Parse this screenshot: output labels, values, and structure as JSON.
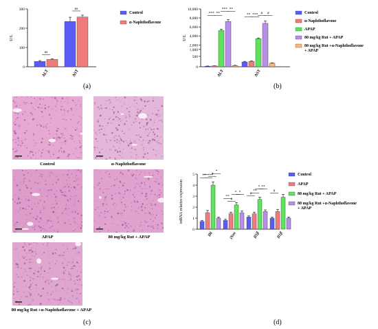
{
  "panel_labels": {
    "a": "(a)",
    "b": "(b)",
    "c": "(c)",
    "d": "(d)"
  },
  "colors": {
    "control": "#5b5bf5",
    "naphtho": "#f07b7b",
    "apap": "#5fe35f",
    "rut_apap": "#b98ee8",
    "rut_naphtho_apap": "#f5b77f"
  },
  "chart_data": [
    {
      "id": "a",
      "type": "bar",
      "ylabel": "U/L",
      "ylim": [
        0,
        300
      ],
      "yticks": [
        "0",
        "100",
        "200",
        "300"
      ],
      "categories": [
        "ALT",
        "AST"
      ],
      "series": [
        {
          "name": "Control",
          "values": [
            28,
            235
          ],
          "errors": [
            4,
            22
          ]
        },
        {
          "name": "α-Naphthoflavone",
          "values": [
            38,
            258
          ],
          "errors": [
            4,
            10
          ]
        }
      ],
      "annotations": [
        "ns",
        "ns"
      ],
      "legend": "right"
    },
    {
      "id": "b",
      "type": "bar",
      "ylabel": "U/L",
      "ylim": [
        0,
        10000
      ],
      "yticks": [
        "0",
        "500",
        "1,000",
        "2,000",
        "4,000",
        "6,000",
        "8,000",
        "10,000"
      ],
      "categories": [
        "ALT",
        "AST"
      ],
      "series": [
        {
          "name": "Control",
          "values": [
            30,
            230
          ],
          "errors": [
            5,
            30
          ]
        },
        {
          "name": "α-Naphthoflavone",
          "values": [
            40,
            260
          ],
          "errors": [
            5,
            20
          ]
        },
        {
          "name": "APAP",
          "values": [
            5200,
            3400
          ],
          "errors": [
            300,
            150
          ]
        },
        {
          "name": "80 mg/kg Rut + APAP",
          "values": [
            7200,
            6800
          ],
          "errors": [
            400,
            500
          ]
        },
        {
          "name": "80 mg/kg Rut +α-Naphthoflavone + APAP",
          "values": [
            60,
            170
          ],
          "errors": [
            10,
            15
          ]
        }
      ],
      "annotations": [
        "***",
        "**",
        "***",
        "**",
        "**",
        "***",
        "#",
        "#"
      ],
      "legend": "right"
    },
    {
      "id": "d",
      "type": "bar",
      "ylabel": "mRNA relative expression",
      "ylim": [
        0,
        5
      ],
      "yticks": [
        "0",
        "1",
        "2",
        "3",
        "4",
        "5"
      ],
      "categories": [
        "Il6",
        "iNos",
        "Il1β",
        "Il1β"
      ],
      "series": [
        {
          "name": "Control",
          "values": [
            0.7,
            0.8,
            1.1,
            1.0
          ],
          "errors": [
            0.1,
            0.1,
            0.1,
            0.1
          ]
        },
        {
          "name": "APAP",
          "values": [
            1.5,
            1.4,
            1.4,
            1.6
          ],
          "errors": [
            0.2,
            0.15,
            0.15,
            0.2
          ]
        },
        {
          "name": "80 mg/kg Rut + APAP",
          "values": [
            4.0,
            2.2,
            2.7,
            2.9
          ],
          "errors": [
            0.3,
            0.2,
            0.2,
            0.25
          ]
        },
        {
          "name": "80 mg/kg Rut +α-Naphthoflavone + APAP",
          "values": [
            1.0,
            1.5,
            1.6,
            1.0
          ],
          "errors": [
            0.1,
            0.15,
            0.15,
            0.1
          ]
        }
      ],
      "annotations": [
        "**",
        "*****",
        "#",
        "*",
        "**",
        "#",
        "*",
        "*",
        "#",
        "**",
        "*",
        "**",
        "#"
      ],
      "legend": "right"
    }
  ],
  "micrographs": [
    {
      "caption": "Control",
      "tone": "#e6a9d4"
    },
    {
      "caption": "α-Naphthoflavone",
      "tone": "#e3b6da"
    },
    {
      "caption": "APAP",
      "tone": "#dd9cc9"
    },
    {
      "caption": "80 mg/kg Rut + APAP",
      "tone": "#e0a3cf"
    },
    {
      "caption": "80 mg/kg Rut +α-Naphthoflavone + APAP",
      "tone": "#dfa6d0"
    }
  ]
}
